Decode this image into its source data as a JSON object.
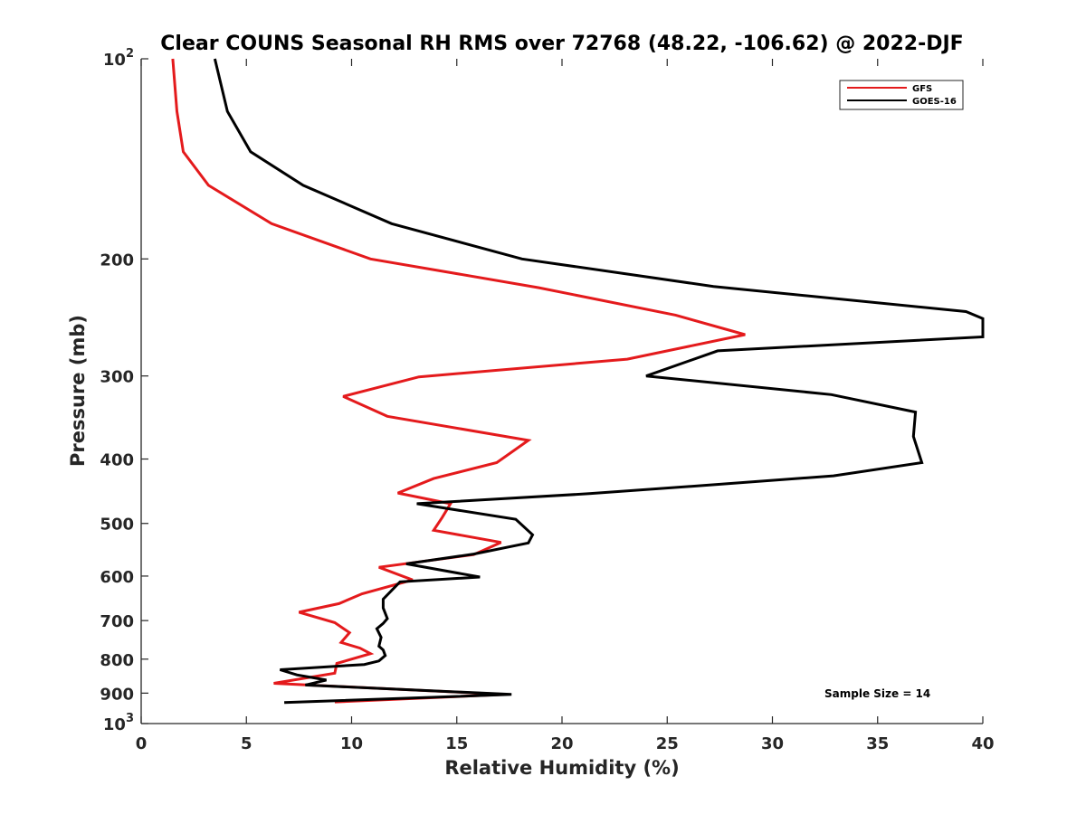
{
  "chart_data": {
    "type": "line",
    "title": "Clear COUNS Seasonal RH RMS over 72768 (48.22, -106.62) @ 2022-DJF",
    "xlabel": "Relative Humidity (%)",
    "ylabel": "Pressure (mb)",
    "xlim": [
      0,
      40
    ],
    "ylim": [
      100,
      1000
    ],
    "yscale": "log",
    "y_reversed": true,
    "xticks": [
      0,
      5,
      10,
      15,
      20,
      25,
      30,
      35,
      40
    ],
    "xtick_labels": [
      "0",
      "5",
      "10",
      "15",
      "20",
      "25",
      "30",
      "35",
      "40"
    ],
    "yticks": [
      {
        "value": 100,
        "base": "10",
        "exp": "2"
      },
      {
        "value": 200,
        "base": "200",
        "exp": ""
      },
      {
        "value": 300,
        "base": "300",
        "exp": ""
      },
      {
        "value": 400,
        "base": "400",
        "exp": ""
      },
      {
        "value": 500,
        "base": "500",
        "exp": ""
      },
      {
        "value": 600,
        "base": "600",
        "exp": ""
      },
      {
        "value": 700,
        "base": "700",
        "exp": ""
      },
      {
        "value": 800,
        "base": "800",
        "exp": ""
      },
      {
        "value": 900,
        "base": "900",
        "exp": ""
      },
      {
        "value": 1000,
        "base": "10",
        "exp": "3"
      }
    ],
    "legend": {
      "position": "top-right",
      "entries": [
        {
          "name": "GFS",
          "color": "#e41a1c"
        },
        {
          "name": "GOES-16",
          "color": "#000000"
        }
      ]
    },
    "annotation": "Sample Size = 14",
    "series": [
      {
        "name": "GFS",
        "color": "#e41a1c",
        "x": [
          1.5,
          1.7,
          2.0,
          3.2,
          6.2,
          10.9,
          18.9,
          25.4,
          28.7,
          23.1,
          13.2,
          9.6,
          11.7,
          18.4,
          16.9,
          13.9,
          12.2,
          14.7,
          14.3,
          13.9,
          17.1,
          15.8,
          11.3,
          12.9,
          10.5,
          9.4,
          7.5,
          9.2,
          9.9,
          9.5,
          10.4,
          10.9,
          9.3,
          9.2,
          6.3,
          17.3,
          9.2
        ],
        "y": [
          100,
          120,
          138,
          155,
          177,
          200,
          221,
          243,
          260,
          283,
          301,
          322,
          345,
          375,
          405,
          428,
          450,
          467,
          490,
          512,
          534,
          557,
          582,
          608,
          638,
          660,
          680,
          705,
          730,
          755,
          770,
          785,
          812,
          840,
          870,
          904,
          928
        ]
      },
      {
        "name": "GOES-16",
        "color": "#000000",
        "x": [
          3.5,
          4.1,
          5.2,
          7.7,
          11.9,
          18.1,
          27.2,
          39.2,
          40.0,
          40.0,
          27.4,
          24.0,
          32.8,
          36.8,
          36.7,
          37.1,
          32.9,
          27.3,
          21.3,
          13.1,
          17.8,
          18.6,
          18.4,
          15.8,
          12.6,
          16.1,
          12.3,
          11.5,
          11.5,
          11.7,
          11.5,
          11.2,
          11.4,
          11.3,
          11.5,
          11.6,
          11.3,
          10.6,
          6.6,
          7.4,
          8.8,
          7.8,
          17.6,
          6.8
        ],
        "y": [
          100,
          120,
          138,
          155,
          177,
          200,
          220,
          240,
          246,
          262,
          275,
          300,
          320,
          340,
          370,
          405,
          424,
          437,
          451,
          467,
          493,
          520,
          535,
          556,
          575,
          602,
          612,
          650,
          670,
          695,
          707,
          720,
          742,
          765,
          775,
          790,
          805,
          815,
          830,
          845,
          860,
          875,
          904,
          930
        ]
      }
    ]
  }
}
